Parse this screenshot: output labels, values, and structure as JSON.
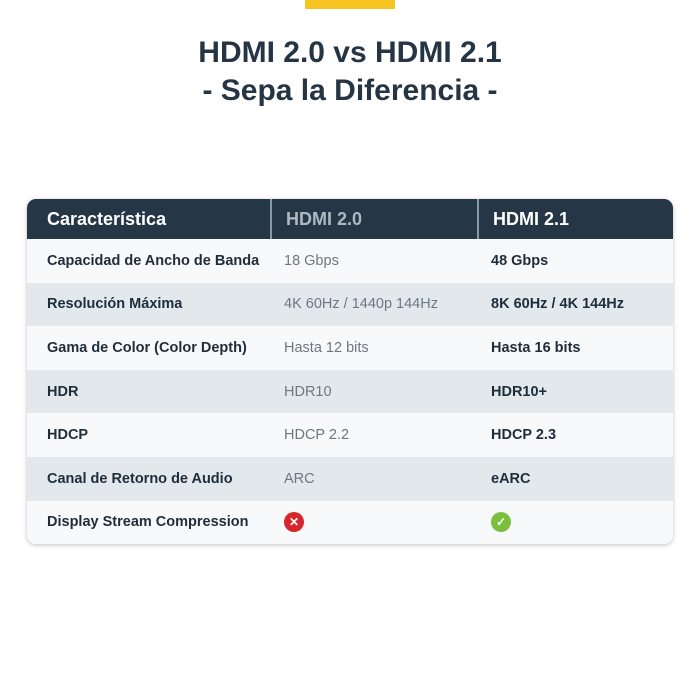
{
  "title_line1": "HDMI 2.0 vs HDMI 2.1",
  "title_line2": "- Sepa la Diferencia -",
  "colors": {
    "accent_bar": "#f6c523",
    "header_bg": "#253746",
    "no": "#d7262e",
    "yes": "#7cbf3f"
  },
  "table": {
    "headers": [
      "Característica",
      "HDMI 2.0",
      "HDMI 2.1"
    ],
    "rows": [
      {
        "feature": "Capacidad de Ancho de Banda",
        "hdmi20": "18 Gbps",
        "hdmi21": "48 Gbps"
      },
      {
        "feature": "Resolución Máxima",
        "hdmi20": "4K 60Hz / 1440p 144Hz",
        "hdmi21": "8K 60Hz / 4K 144Hz"
      },
      {
        "feature": "Gama de Color (Color Depth)",
        "hdmi20": "Hasta 12 bits",
        "hdmi21": "Hasta 16 bits"
      },
      {
        "feature": "HDR",
        "hdmi20": "HDR10",
        "hdmi21": "HDR10+"
      },
      {
        "feature": "HDCP",
        "hdmi20": "HDCP 2.2",
        "hdmi21": "HDCP 2.3"
      },
      {
        "feature": "Canal de Retorno de Audio",
        "hdmi20": "ARC",
        "hdmi21": "eARC"
      },
      {
        "feature": "Display Stream Compression",
        "hdmi20_icon": "x-circle-icon",
        "hdmi21_icon": "check-circle-icon"
      }
    ]
  }
}
